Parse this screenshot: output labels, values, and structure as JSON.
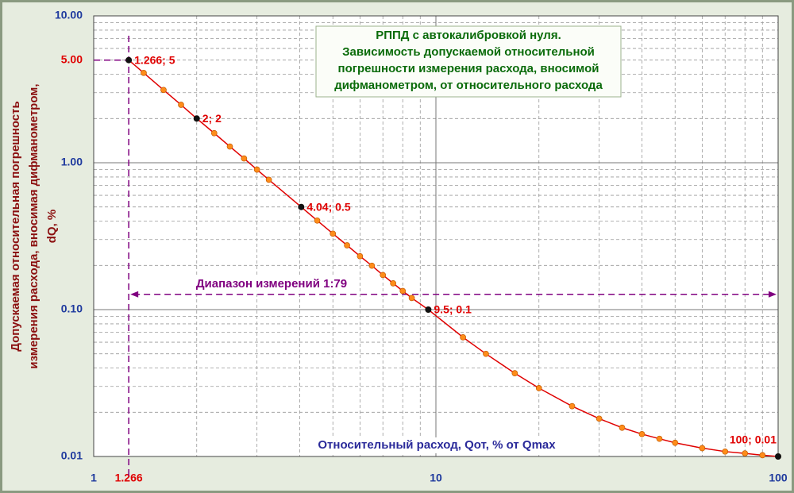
{
  "chart_data": {
    "type": "line",
    "title_lines": [
      "РППД с автокалибровкой нуля.",
      "Зависимость допускаемой относительной",
      "погрешности измерения расхода, вносимой",
      "дифманометром, от относительного расхода"
    ],
    "x_label": "Относительный расход, Qот, % от Qmax",
    "y_label_lines": [
      "Допускаемая относительная погрешность",
      "измерения расхода, вносимая дифманометром,",
      "dQ, %"
    ],
    "log_x": true,
    "log_y": true,
    "grid": true,
    "xlim": [
      1,
      100
    ],
    "ylim": [
      0.01,
      10
    ],
    "xticks": [
      1,
      1.266,
      10,
      100
    ],
    "yticks": [
      0.01,
      {
        "value": 0.1,
        "label": "0.10"
      },
      {
        "value": 1,
        "label": "1.00"
      },
      {
        "value": 5,
        "label": "5.00"
      },
      {
        "value": 10,
        "label": "10.00"
      }
    ],
    "series": [
      {
        "color": "#e00000",
        "marker_color": "#ff8c1a",
        "x": [
          1.266,
          1.4,
          1.6,
          1.8,
          2,
          2.25,
          2.5,
          2.75,
          3,
          3.25,
          4.04,
          4.5,
          5,
          5.5,
          6,
          6.5,
          7,
          7.5,
          8,
          8.5,
          9.5,
          12,
          14,
          17,
          20,
          25,
          30,
          35,
          40,
          45,
          50,
          60,
          70,
          80,
          90,
          100
        ],
        "values": [
          5,
          4.09,
          3.13,
          2.48,
          2,
          1.59,
          1.29,
          1.07,
          0.898,
          0.766,
          0.5,
          0.404,
          0.329,
          0.274,
          0.231,
          0.199,
          0.172,
          0.151,
          0.134,
          0.12,
          0.1,
          0.0648,
          0.05,
          0.0369,
          0.0292,
          0.022,
          0.0181,
          0.0157,
          0.0142,
          0.0132,
          0.0124,
          0.0114,
          0.0108,
          0.0105,
          0.0102,
          0.01
        ]
      }
    ],
    "highlights": [
      {
        "x": 1.266,
        "y": 5,
        "label": "1.266; 5"
      },
      {
        "x": 2,
        "y": 2,
        "label": "2; 2"
      },
      {
        "x": 4.04,
        "y": 0.5,
        "label": "4.04; 0.5"
      },
      {
        "x": 9.5,
        "y": 0.1,
        "label": "9.5; 0.1"
      },
      {
        "x": 100,
        "y": 0.01,
        "label": "100; 0.01"
      }
    ],
    "reference": {
      "x": 1.266,
      "y": 5,
      "color": "#800080"
    },
    "range_arrow": {
      "y": 0.127,
      "x_from": 1.266,
      "x_to": 100,
      "label": "Диапазон измерений 1:79",
      "color": "#800080"
    }
  }
}
